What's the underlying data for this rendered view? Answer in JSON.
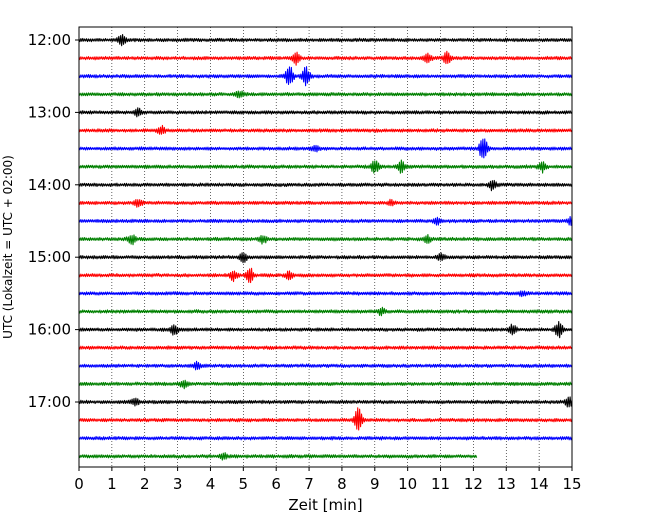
{
  "chart_data": {
    "type": "line",
    "title": "",
    "xlabel": "Zeit  [min]",
    "ylabel": "UTC (Lokalzeit = UTC + 02:00)",
    "xlim": [
      0,
      15
    ],
    "x_ticks": [
      "0",
      "1",
      "2",
      "3",
      "4",
      "5",
      "6",
      "7",
      "8",
      "9",
      "10",
      "11",
      "12",
      "13",
      "14",
      "15"
    ],
    "y_tick_labels": [
      {
        "row": 0,
        "label": "12:00"
      },
      {
        "row": 4,
        "label": "13:00"
      },
      {
        "row": 8,
        "label": "14:00"
      },
      {
        "row": 12,
        "label": "15:00"
      },
      {
        "row": 16,
        "label": "16:00"
      },
      {
        "row": 20,
        "label": "17:00"
      }
    ],
    "grid": "vertical dotted at each minute",
    "row_interval_min": 15,
    "colors": [
      "#000000",
      "#ff0000",
      "#0000ff",
      "#008000"
    ],
    "traces": [
      {
        "start": "12:00",
        "color": "#000000",
        "end_min": 15,
        "events": [
          {
            "t": 1.3,
            "amp": 0.6
          }
        ]
      },
      {
        "start": "12:15",
        "color": "#ff0000",
        "end_min": 15,
        "events": [
          {
            "t": 6.6,
            "amp": 0.8
          },
          {
            "t": 10.6,
            "amp": 0.6
          },
          {
            "t": 11.2,
            "amp": 0.7
          }
        ]
      },
      {
        "start": "12:30",
        "color": "#0000ff",
        "end_min": 15,
        "events": [
          {
            "t": 6.4,
            "amp": 1.3
          },
          {
            "t": 6.9,
            "amp": 1.1
          }
        ]
      },
      {
        "start": "12:45",
        "color": "#008000",
        "end_min": 15,
        "events": [
          {
            "t": 4.9,
            "amp": 0.4
          }
        ]
      },
      {
        "start": "13:00",
        "color": "#000000",
        "end_min": 15,
        "events": [
          {
            "t": 1.8,
            "amp": 0.5
          }
        ]
      },
      {
        "start": "13:15",
        "color": "#ff0000",
        "end_min": 15,
        "events": [
          {
            "t": 2.5,
            "amp": 0.5
          }
        ]
      },
      {
        "start": "13:30",
        "color": "#0000ff",
        "end_min": 15,
        "events": [
          {
            "t": 12.3,
            "amp": 1.6
          },
          {
            "t": 7.2,
            "amp": 0.4
          }
        ]
      },
      {
        "start": "13:45",
        "color": "#008000",
        "end_min": 15,
        "events": [
          {
            "t": 9.0,
            "amp": 0.8
          },
          {
            "t": 9.8,
            "amp": 0.7
          },
          {
            "t": 14.1,
            "amp": 0.6
          }
        ]
      },
      {
        "start": "14:00",
        "color": "#000000",
        "end_min": 15,
        "events": [
          {
            "t": 12.6,
            "amp": 0.7
          }
        ]
      },
      {
        "start": "14:15",
        "color": "#ff0000",
        "end_min": 15,
        "events": [
          {
            "t": 1.8,
            "amp": 0.4
          },
          {
            "t": 9.5,
            "amp": 0.3
          }
        ]
      },
      {
        "start": "14:30",
        "color": "#0000ff",
        "end_min": 15,
        "events": [
          {
            "t": 10.9,
            "amp": 0.4
          },
          {
            "t": 15.0,
            "amp": 0.8
          }
        ]
      },
      {
        "start": "14:45",
        "color": "#008000",
        "end_min": 15,
        "events": [
          {
            "t": 1.6,
            "amp": 0.6
          },
          {
            "t": 5.6,
            "amp": 0.5
          },
          {
            "t": 10.6,
            "amp": 0.4
          }
        ]
      },
      {
        "start": "15:00",
        "color": "#000000",
        "end_min": 15,
        "events": [
          {
            "t": 5.0,
            "amp": 0.6
          },
          {
            "t": 11.0,
            "amp": 0.4
          }
        ]
      },
      {
        "start": "15:15",
        "color": "#ff0000",
        "end_min": 15,
        "events": [
          {
            "t": 4.7,
            "amp": 0.6
          },
          {
            "t": 5.2,
            "amp": 0.8
          },
          {
            "t": 6.4,
            "amp": 0.4
          }
        ]
      },
      {
        "start": "15:30",
        "color": "#0000ff",
        "end_min": 15,
        "events": [
          {
            "t": 13.5,
            "amp": 0.3
          }
        ]
      },
      {
        "start": "15:45",
        "color": "#008000",
        "end_min": 15,
        "events": [
          {
            "t": 9.2,
            "amp": 0.4
          }
        ]
      },
      {
        "start": "16:00",
        "color": "#000000",
        "end_min": 15,
        "events": [
          {
            "t": 2.9,
            "amp": 0.6
          },
          {
            "t": 13.2,
            "amp": 0.6
          },
          {
            "t": 14.6,
            "amp": 0.9
          }
        ]
      },
      {
        "start": "16:15",
        "color": "#ff0000",
        "end_min": 15,
        "events": []
      },
      {
        "start": "16:30",
        "color": "#0000ff",
        "end_min": 15,
        "events": [
          {
            "t": 3.6,
            "amp": 0.5
          }
        ]
      },
      {
        "start": "16:45",
        "color": "#008000",
        "end_min": 15,
        "events": [
          {
            "t": 3.2,
            "amp": 0.5
          }
        ]
      },
      {
        "start": "17:00",
        "color": "#000000",
        "end_min": 15,
        "events": [
          {
            "t": 1.7,
            "amp": 0.4
          },
          {
            "t": 14.9,
            "amp": 0.6
          }
        ]
      },
      {
        "start": "17:15",
        "color": "#ff0000",
        "end_min": 15,
        "events": [
          {
            "t": 8.5,
            "amp": 1.4
          }
        ]
      },
      {
        "start": "17:30",
        "color": "#0000ff",
        "end_min": 15,
        "events": []
      },
      {
        "start": "17:45",
        "color": "#008000",
        "end_min": 12.1,
        "events": [
          {
            "t": 4.4,
            "amp": 0.4
          }
        ]
      }
    ]
  }
}
